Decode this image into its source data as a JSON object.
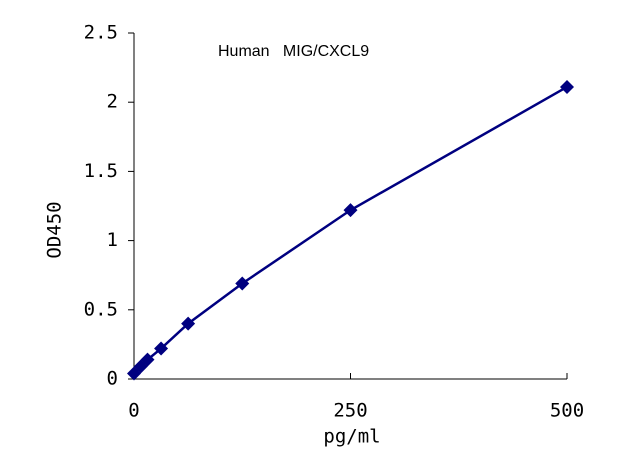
{
  "chart_data": {
    "type": "line",
    "title": "Human   MIG/CXCL9",
    "x_label": "pg/ml",
    "y_label": "OD450",
    "x": [
      0,
      7.8,
      15.6,
      31.25,
      62.5,
      125,
      250,
      500
    ],
    "series": [
      {
        "name": "MIG/CXCL9",
        "color": "#000080",
        "values": [
          0.04,
          0.09,
          0.14,
          0.22,
          0.4,
          0.69,
          1.22,
          2.11
        ]
      }
    ],
    "xlim": [
      0,
      500
    ],
    "xticks": [
      0,
      250,
      500
    ],
    "ylim": [
      0,
      2.5
    ],
    "yticks": [
      0,
      0.5,
      1,
      1.5,
      2,
      2.5
    ],
    "grid": false
  }
}
